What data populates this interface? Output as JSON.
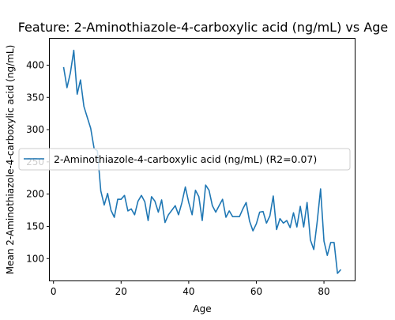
{
  "chart_data": {
    "type": "line",
    "title": "Feature: 2-Aminothiazole-4-carboxylic acid (ng/mL) vs Age",
    "xlabel": "Age",
    "ylabel": "Mean 2-Aminothiazole-4-carboxylic acid (ng/mL)",
    "xlim": [
      -1.1,
      89.1
    ],
    "ylim": [
      66,
      441
    ],
    "xticks": [
      0,
      20,
      40,
      60,
      80
    ],
    "yticks": [
      100,
      150,
      200,
      250,
      300,
      350,
      400
    ],
    "grid": false,
    "legend_position": "center-left",
    "series": [
      {
        "name": "2-Aminothiazole-4-carboxylic acid (ng/mL) (R2=0.07)",
        "color": "#1f77b4",
        "x": [
          3,
          4,
          5,
          6,
          7,
          8,
          9,
          10,
          11,
          12,
          13,
          14,
          15,
          16,
          17,
          18,
          19,
          20,
          21,
          22,
          23,
          24,
          25,
          26,
          27,
          28,
          29,
          30,
          31,
          32,
          33,
          34,
          35,
          36,
          37,
          38,
          39,
          40,
          41,
          42,
          43,
          44,
          45,
          46,
          47,
          48,
          49,
          50,
          51,
          52,
          53,
          54,
          55,
          56,
          57,
          58,
          59,
          60,
          61,
          62,
          63,
          64,
          65,
          66,
          67,
          68,
          69,
          70,
          71,
          72,
          73,
          74,
          75,
          76,
          77,
          78,
          79,
          80,
          81,
          82,
          83,
          84,
          85
        ],
        "y": [
          397,
          365,
          388,
          423,
          355,
          377,
          336,
          319,
          302,
          271,
          267,
          205,
          183,
          201,
          175,
          164,
          192,
          192,
          198,
          174,
          177,
          168,
          189,
          198,
          188,
          159,
          196,
          189,
          172,
          191,
          156,
          168,
          175,
          182,
          168,
          187,
          211,
          187,
          168,
          206,
          196,
          159,
          214,
          206,
          182,
          172,
          182,
          192,
          164,
          174,
          165,
          165,
          165,
          177,
          187,
          158,
          143,
          154,
          172,
          173,
          155,
          166,
          197,
          145,
          162,
          155,
          159,
          148,
          171,
          149,
          181,
          149,
          187,
          129,
          114,
          157,
          208,
          127,
          105,
          125,
          125,
          77,
          83
        ]
      }
    ]
  }
}
